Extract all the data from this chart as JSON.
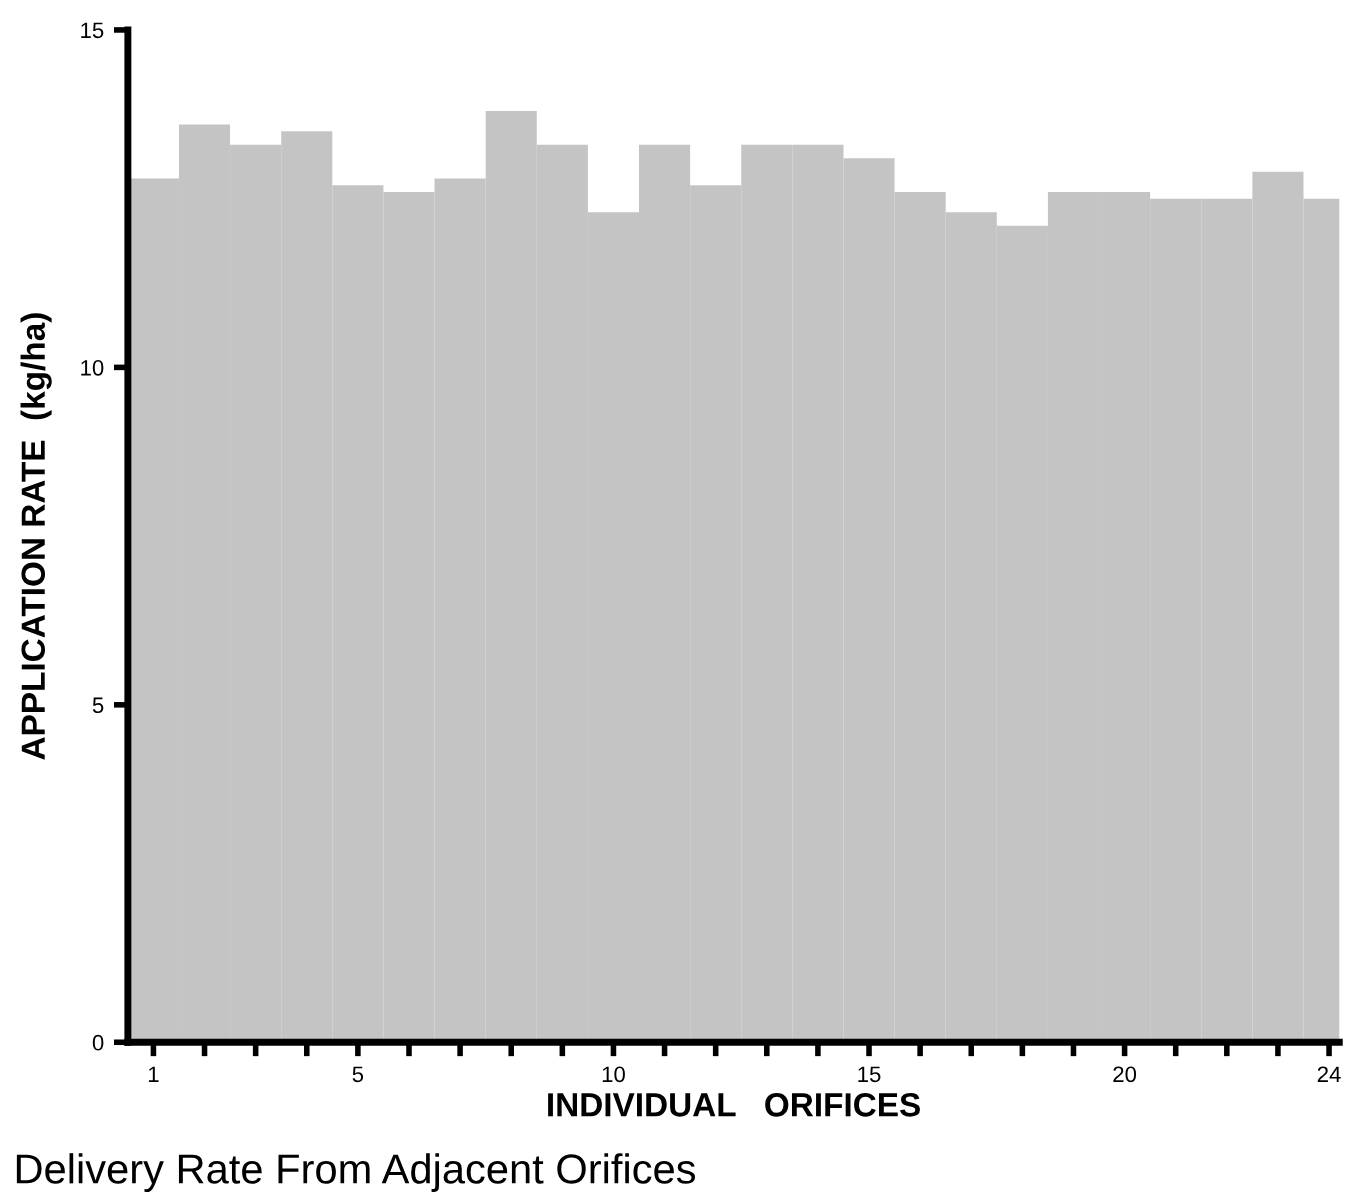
{
  "chart_data": {
    "type": "bar",
    "xlabel": "INDIVIDUAL   ORIFICES",
    "ylabel": "APPLICATION RATE  (kg/ha)",
    "x": [
      1,
      2,
      3,
      4,
      5,
      6,
      7,
      8,
      9,
      10,
      11,
      12,
      13,
      14,
      15,
      16,
      17,
      18,
      19,
      20,
      21,
      22,
      23,
      24
    ],
    "values": [
      12.8,
      13.6,
      13.3,
      13.5,
      12.7,
      12.6,
      12.8,
      13.8,
      13.3,
      12.3,
      13.3,
      12.7,
      13.3,
      13.3,
      13.1,
      12.6,
      12.3,
      12.1,
      12.6,
      12.6,
      12.5,
      12.5,
      12.9,
      12.5
    ],
    "color": "#c4c4c4",
    "xlim": [
      0.5,
      24.2
    ],
    "xticks": [
      1,
      {
        "value": 2,
        "label": null
      },
      {
        "value": 3,
        "label": null
      },
      {
        "value": 4,
        "label": null
      },
      5,
      {
        "value": 6,
        "label": null
      },
      {
        "value": 7,
        "label": null
      },
      {
        "value": 8,
        "label": null
      },
      {
        "value": 9,
        "label": null
      },
      10,
      {
        "value": 11,
        "label": null
      },
      {
        "value": 12,
        "label": null
      },
      {
        "value": 13,
        "label": null
      },
      {
        "value": 14,
        "label": null
      },
      15,
      {
        "value": 16,
        "label": null
      },
      {
        "value": 17,
        "label": null
      },
      {
        "value": 18,
        "label": null
      },
      {
        "value": 19,
        "label": null
      },
      20,
      {
        "value": 21,
        "label": null
      },
      {
        "value": 22,
        "label": null
      },
      {
        "value": 23,
        "label": null
      },
      24
    ],
    "ylim": [
      0,
      15
    ],
    "yticks": [
      0,
      5,
      10,
      15
    ],
    "grid": false,
    "annotations": [
      "Delivery Rate From Adjacent Orifices"
    ]
  }
}
